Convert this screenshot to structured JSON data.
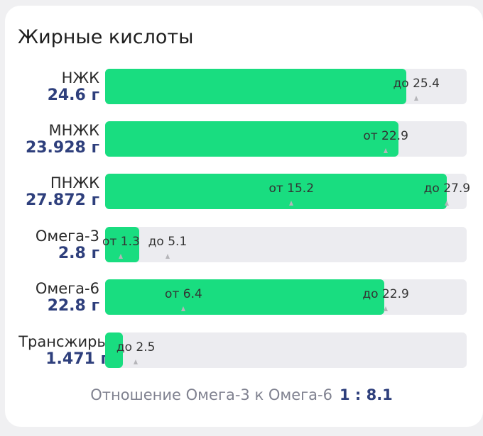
{
  "title": "Жирные кислоты",
  "scale_max": 29.5,
  "colors": {
    "fill": "#19dd80",
    "track": "#ececf0",
    "value": "#2e3f7c"
  },
  "rows": [
    {
      "name": "НЖК",
      "value": "24.6 г",
      "amount": 24.6,
      "markers": [
        {
          "text": "до 25.4",
          "at": 25.4
        }
      ]
    },
    {
      "name": "МНЖК",
      "value": "23.928 г",
      "amount": 23.928,
      "markers": [
        {
          "text": "от 22.9",
          "at": 22.9
        }
      ]
    },
    {
      "name": "ПНЖК",
      "value": "27.872 г",
      "amount": 27.872,
      "markers": [
        {
          "text": "от 15.2",
          "at": 15.2
        },
        {
          "text": "до 27.9",
          "at": 27.9
        }
      ]
    },
    {
      "name": "Омега-3",
      "value": "2.8 г",
      "amount": 2.8,
      "markers": [
        {
          "text": "от 1.3",
          "at": 1.3
        },
        {
          "text": "до 5.1",
          "at": 5.1
        }
      ]
    },
    {
      "name": "Омега-6",
      "value": "22.8 г",
      "amount": 22.8,
      "markers": [
        {
          "text": "от 6.4",
          "at": 6.4
        },
        {
          "text": "до 22.9",
          "at": 22.9
        }
      ]
    },
    {
      "name": "Трансжиры",
      "value": "1.471 г",
      "amount": 1.471,
      "markers": [
        {
          "text": "до 2.5",
          "at": 2.5
        }
      ]
    }
  ],
  "ratio": {
    "label": "Отношение Омега-3 к Омега-6",
    "value": "1 : 8.1"
  }
}
